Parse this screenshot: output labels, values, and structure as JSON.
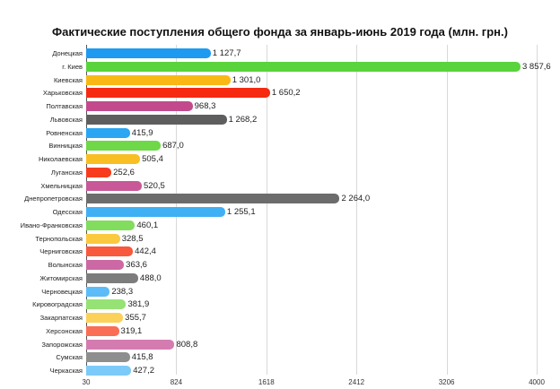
{
  "chart_data": {
    "type": "bar",
    "orientation": "horizontal",
    "title": "Фактические поступления общего фонда за январь-июнь 2019 года (млн. грн.)",
    "xlabel": "",
    "ylabel": "",
    "xlim": [
      30,
      4000
    ],
    "xticks": [
      "30",
      "824",
      "1618",
      "2412",
      "3206",
      "4000"
    ],
    "grid": true,
    "legend": "none",
    "categories": [
      "Донецкая",
      "г. Киев",
      "Киевская",
      "Харьковская",
      "Полтавская",
      "Львовская",
      "Ровненская",
      "Винницкая",
      "Николаевская",
      "Луганская",
      "Хмельницкая",
      "Днепропетровская",
      "Одесская",
      "Ивано-Франковская",
      "Тернопольская",
      "Черниговская",
      "Волынская",
      "Житомирская",
      "Черновецкая",
      "Кировоградская",
      "Закарпатская",
      "Херсонская",
      "Запорожская",
      "Сумская",
      "Черкаская"
    ],
    "values": [
      1127.7,
      3857.6,
      1301.0,
      1650.2,
      968.3,
      1268.2,
      415.9,
      687.0,
      505.4,
      252.6,
      520.5,
      2264.0,
      1255.1,
      460.1,
      328.5,
      442.4,
      363.6,
      488.0,
      238.3,
      381.9,
      355.7,
      319.1,
      808.8,
      415.8,
      427.2
    ],
    "value_labels": [
      "1 127,7",
      "3 857,6",
      "1 301,0",
      "1 650,2",
      "968,3",
      "1 268,2",
      "415,9",
      "687,0",
      "505,4",
      "252,6",
      "520,5",
      "2 264,0",
      "1 255,1",
      "460,1",
      "328,5",
      "442,4",
      "363,6",
      "488,0",
      "238,3",
      "381,9",
      "355,7",
      "319,1",
      "808,8",
      "415,8",
      "427,2"
    ],
    "colors": [
      "#1e9af0",
      "#5ad43c",
      "#f9b814",
      "#f52a10",
      "#c24a8c",
      "#5e5e5e",
      "#2aa6f2",
      "#6ed848",
      "#f9bf22",
      "#f73c1e",
      "#c85898",
      "#6c6c6c",
      "#40b0f5",
      "#82dc5e",
      "#fac93e",
      "#f8583c",
      "#cc68a4",
      "#7c7c7c",
      "#5cbcf7",
      "#96e274",
      "#fbd15a",
      "#f96e55",
      "#d47cb0",
      "#8e8e8e",
      "#7ccaf8"
    ]
  }
}
